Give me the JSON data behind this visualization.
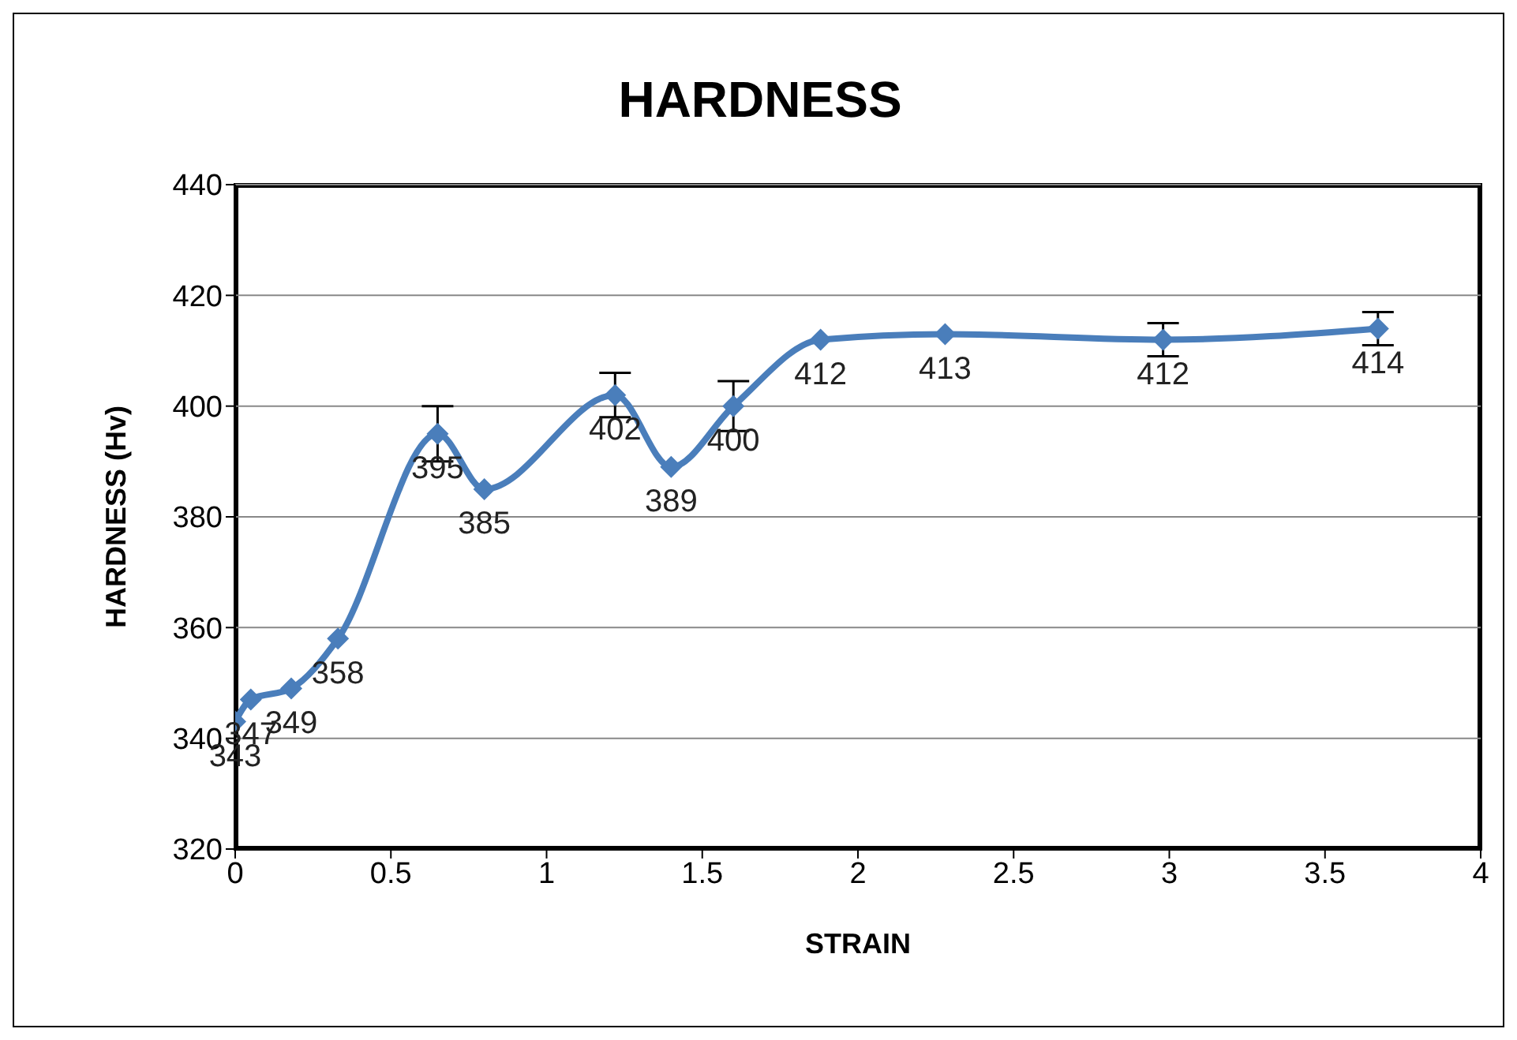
{
  "chart_data": {
    "type": "line",
    "title": "HARDNESS",
    "xlabel": "STRAIN",
    "ylabel": "HARDNESS (Hv)",
    "x": [
      0,
      0.05,
      0.18,
      0.33,
      0.65,
      0.8,
      1.22,
      1.4,
      1.6,
      1.88,
      2.28,
      2.98,
      3.67
    ],
    "series": [
      {
        "color": "#4a7ebb",
        "values": [
          343,
          347,
          349,
          358,
          395,
          385,
          402,
          389,
          400,
          412,
          413,
          412,
          414
        ],
        "errors": [
          null,
          null,
          null,
          null,
          5,
          null,
          4,
          null,
          4.5,
          null,
          null,
          3,
          3
        ]
      }
    ],
    "xlim": [
      0,
      4
    ],
    "xticks": [
      0,
      0.5,
      1,
      1.5,
      2,
      2.5,
      3,
      3.5,
      4
    ],
    "ylim": [
      320,
      440
    ],
    "yticks": [
      320,
      340,
      360,
      380,
      400,
      420,
      440
    ],
    "grid": "y",
    "marker": "diamond",
    "line_style": "solid",
    "data_labels": true,
    "legend": false
  }
}
